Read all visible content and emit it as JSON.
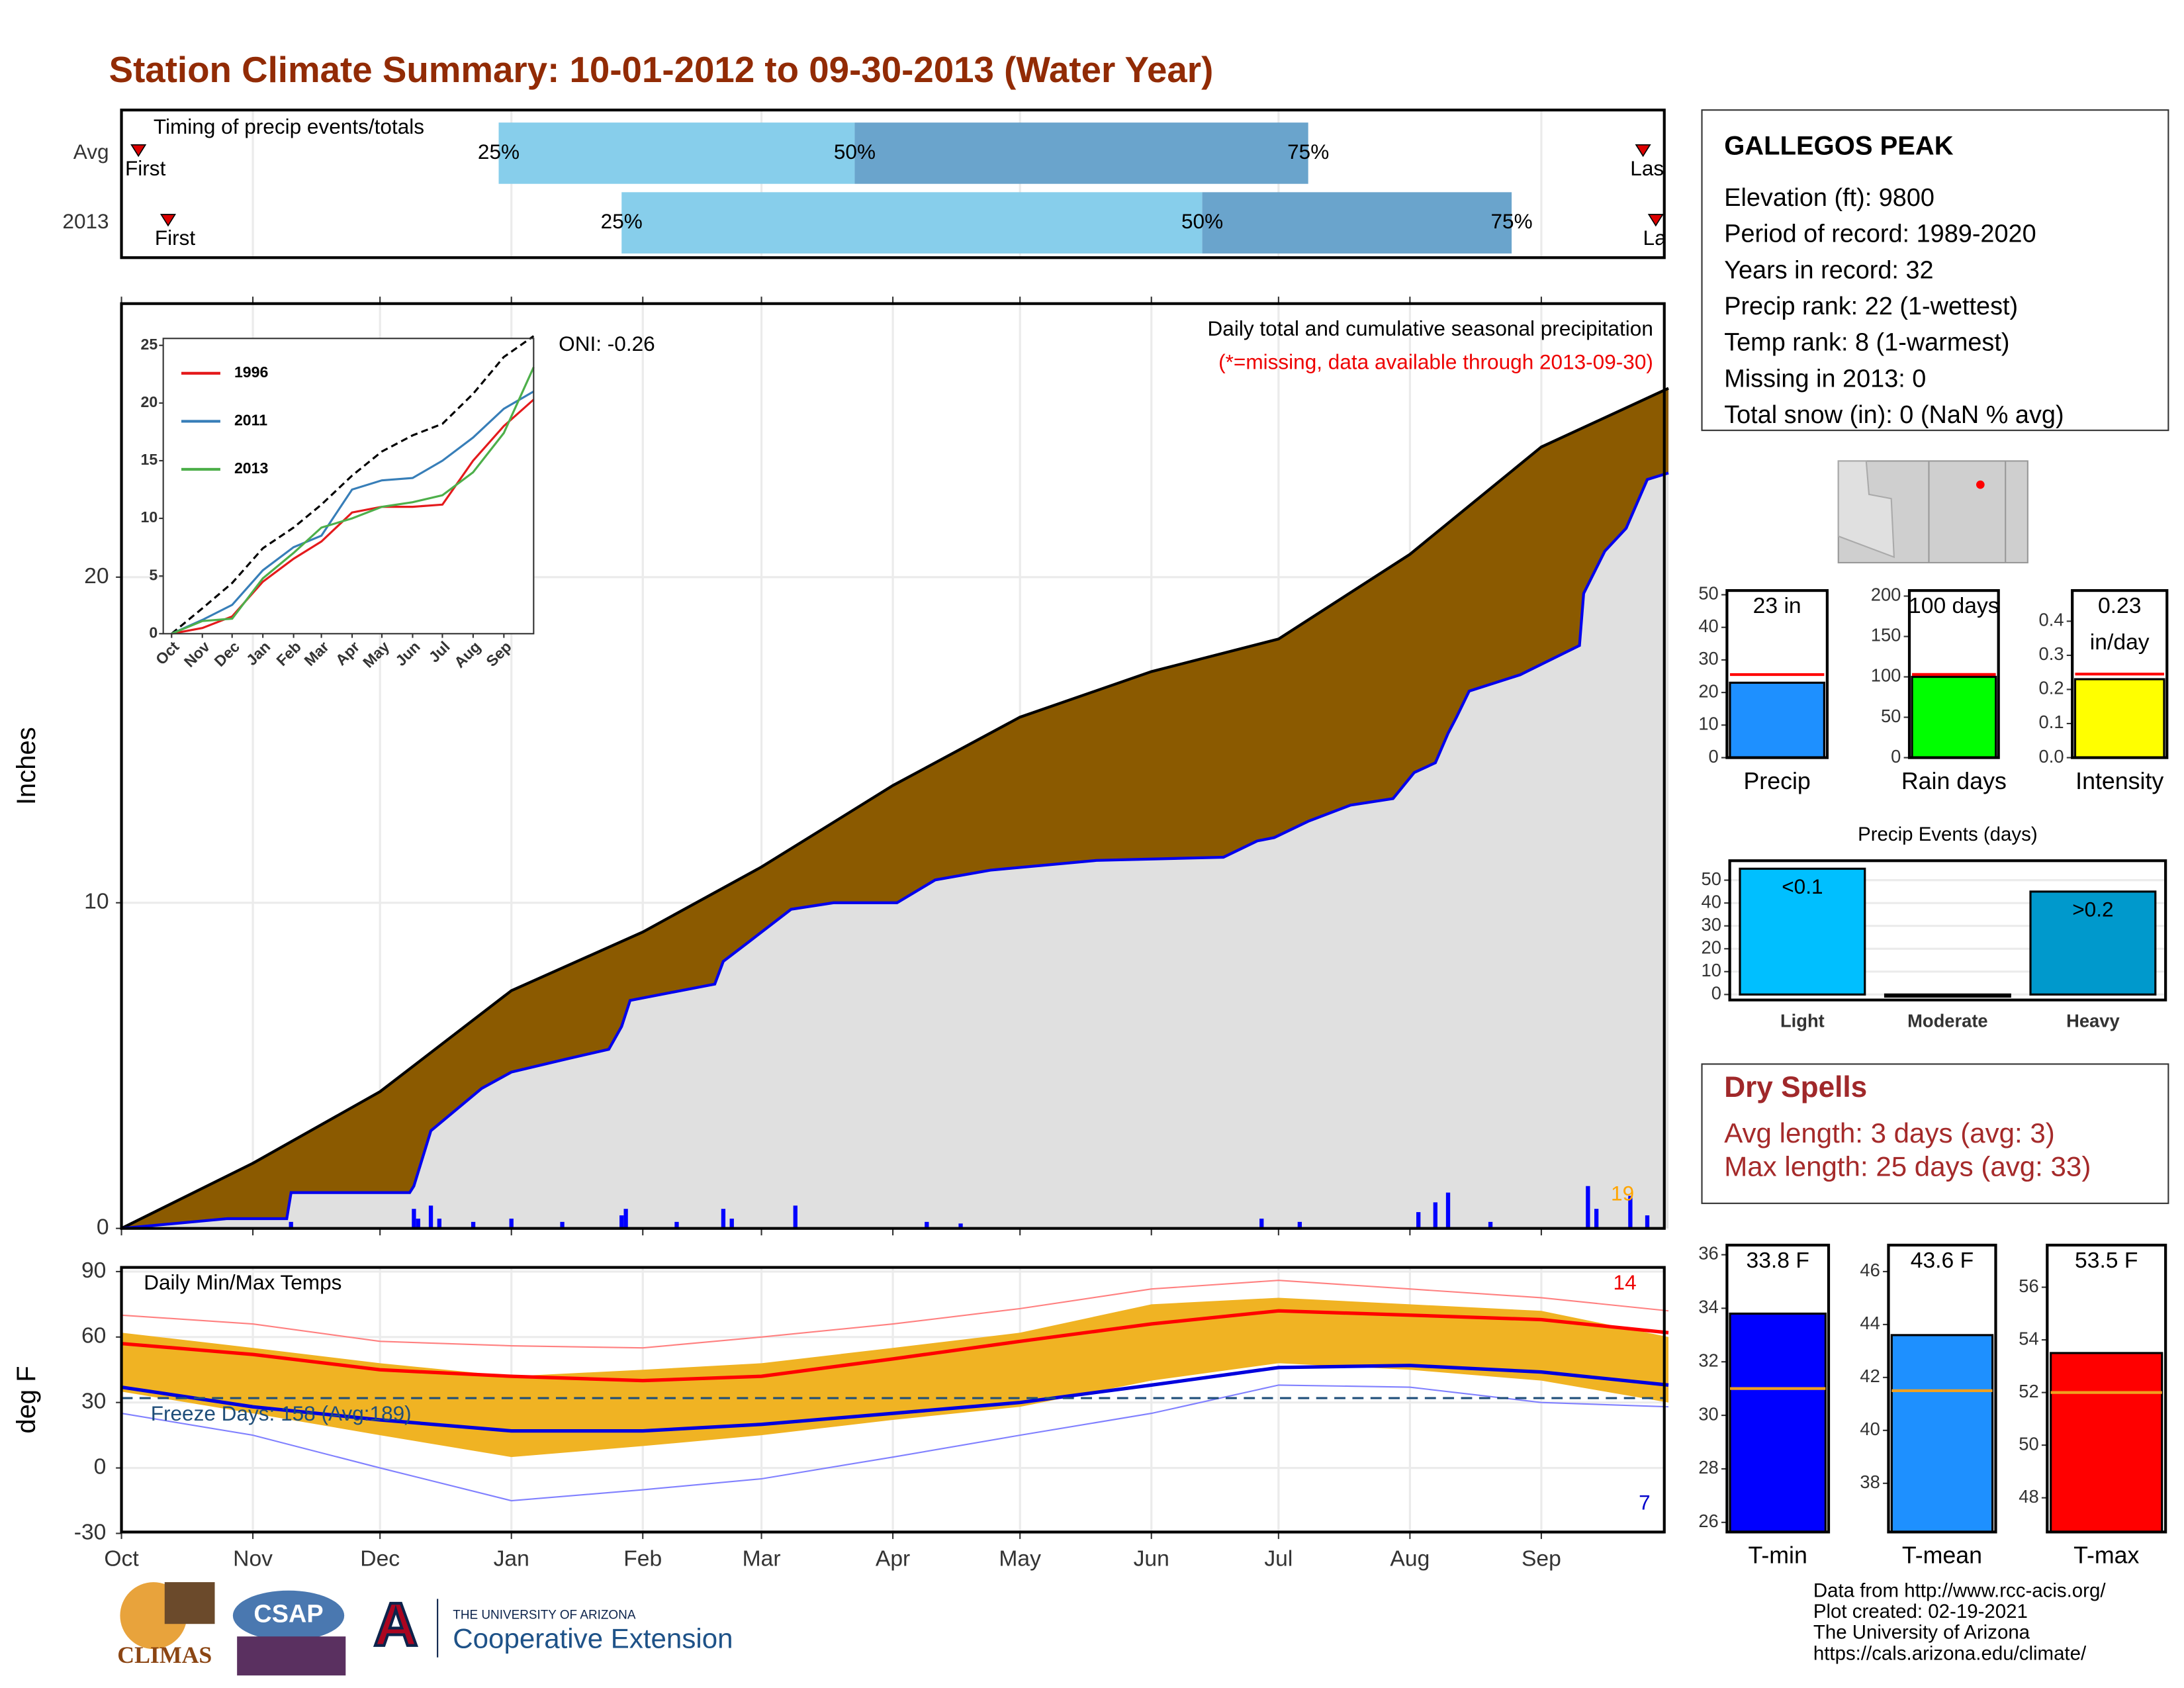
{
  "title": "Station Climate Summary: 10-01-2012 to 09-30-2013 (Water Year)",
  "station": {
    "name": "GALLEGOS PEAK",
    "lines": [
      "Elevation (ft): 9800",
      "Period of record: 1989-2020",
      "Years in record: 32",
      "Precip rank: 22 (1-wettest)",
      "Temp rank: 8 (1-warmest)",
      "Missing in 2013: 0",
      "Total snow (in): 0 (NaN % avg)"
    ]
  },
  "dry_spells": {
    "title": "Dry Spells",
    "lines": [
      "Avg length: 3 days (avg: 3)",
      "Max length: 25 days (avg: 33)"
    ]
  },
  "footer": [
    "Data from http://www.rcc-acis.org/",
    "Plot created: 02-19-2021",
    "The University of Arizona",
    "https://cals.arizona.edu/climate/"
  ],
  "logos": [
    "CLIMAS",
    "CSAP",
    "THE UNIVERSITY OF ARIZONA",
    "Cooperative Extension"
  ],
  "chart_data": [
    {
      "type": "timeline",
      "title": "Timing of precip events/totals",
      "xlim": [
        0,
        365
      ],
      "xticks": [
        31,
        92,
        151,
        212,
        273,
        335
      ],
      "grid": true,
      "marker_labels": {
        "first": "First",
        "p25": "25%",
        "p50": "50%",
        "p75": "75%",
        "last": "Last"
      },
      "rows": [
        {
          "name": "Avg",
          "first": 4,
          "p25": 89,
          "p50": 173,
          "p75": 280,
          "last": 359
        },
        {
          "name": "2013",
          "first": 11,
          "p25": 118,
          "p50": 255,
          "p75": 328,
          "last": 362
        }
      ],
      "colors": {
        "early": "#87ceeb",
        "late": "#6aa4cc",
        "marker": "#dd0000"
      }
    },
    {
      "type": "area",
      "ylabel": "Inches",
      "title": "Daily total and cumulative seasonal precipitation",
      "subtitle": "(*=missing, data available through 2013-09-30)",
      "annotation": "ONI: -0.26",
      "record_label": 19,
      "xlim": [
        0,
        365
      ],
      "xticks": [
        0,
        31,
        61,
        92,
        123,
        151,
        182,
        212,
        243,
        273,
        304,
        335
      ],
      "ylim": [
        0,
        28.4
      ],
      "yticks": [
        0,
        10,
        20
      ],
      "grid": true,
      "average": {
        "x": [
          0,
          31,
          61,
          92,
          123,
          151,
          182,
          212,
          243,
          273,
          304,
          335,
          365
        ],
        "values": [
          0,
          2.0,
          4.2,
          7.3,
          9.1,
          11.1,
          13.6,
          15.7,
          17.1,
          18.1,
          20.7,
          24.0,
          25.8
        ],
        "color": "#000000",
        "fill": "#8b5a00"
      },
      "observed": {
        "x": [
          0,
          25,
          39,
          40,
          68,
          69,
          73,
          85,
          92,
          105,
          115,
          118,
          120,
          140,
          142,
          148,
          158,
          168,
          183,
          192,
          205,
          230,
          260,
          268,
          272,
          280,
          290,
          300,
          305,
          310,
          313,
          315,
          318,
          330,
          344,
          345,
          350,
          355,
          360,
          365
        ],
        "values": [
          0,
          0.3,
          0.3,
          1.1,
          1.1,
          1.3,
          3.0,
          4.3,
          4.8,
          5.2,
          5.5,
          6.2,
          7.0,
          7.5,
          8.2,
          8.8,
          9.8,
          10.0,
          10.0,
          10.7,
          11.0,
          11.3,
          11.4,
          11.9,
          12.0,
          12.5,
          13.0,
          13.2,
          14.0,
          14.3,
          15.2,
          15.7,
          16.5,
          17.0,
          17.9,
          19.5,
          20.8,
          21.5,
          23.0,
          23.2
        ],
        "color": "#0000ee",
        "fill": "#e0e0e0"
      },
      "daily": {
        "x": [
          40,
          69,
          70,
          73,
          75,
          83,
          92,
          104,
          118,
          119,
          131,
          142,
          144,
          159,
          190,
          198,
          269,
          278,
          306,
          310,
          313,
          323,
          346,
          348,
          356,
          360
        ],
        "values": [
          0.2,
          0.6,
          0.3,
          0.7,
          0.3,
          0.2,
          0.3,
          0.2,
          0.4,
          0.6,
          0.2,
          0.6,
          0.3,
          0.7,
          0.2,
          0.15,
          0.3,
          0.2,
          0.5,
          0.8,
          1.1,
          0.2,
          1.3,
          0.6,
          1.0,
          0.4
        ],
        "color": "#0000ff"
      }
    },
    {
      "type": "line",
      "xlim": [
        0,
        365
      ],
      "xticks": [
        {
          "value": 0,
          "label": "Oct"
        },
        {
          "value": 31,
          "label": "Nov"
        },
        {
          "value": 61,
          "label": "Dec"
        },
        {
          "value": 92,
          "label": "Jan"
        },
        {
          "value": 123,
          "label": "Feb"
        },
        {
          "value": 151,
          "label": "Mar"
        },
        {
          "value": 182,
          "label": "Apr"
        },
        {
          "value": 212,
          "label": "May"
        },
        {
          "value": 243,
          "label": "Jun"
        },
        {
          "value": 273,
          "label": "Jul"
        },
        {
          "value": 304,
          "label": "Aug"
        },
        {
          "value": 335,
          "label": "Sep"
        }
      ],
      "ylim": [
        0,
        25.6
      ],
      "yticks": [
        0,
        5,
        10,
        15,
        20,
        25
      ],
      "x": [
        0,
        31,
        61,
        92,
        123,
        151,
        182,
        212,
        243,
        273,
        304,
        335,
        365
      ],
      "average": {
        "values": [
          0,
          2.2,
          4.4,
          7.4,
          9.2,
          11.2,
          13.7,
          15.8,
          17.2,
          18.2,
          20.8,
          24.0,
          25.8
        ],
        "color": "#000000"
      },
      "series": [
        {
          "name": "1996",
          "color": "#e41a1c",
          "values": [
            0,
            0.5,
            1.5,
            4.5,
            6.5,
            8.0,
            10.5,
            11.0,
            11.0,
            11.2,
            15.0,
            18.0,
            20.3
          ]
        },
        {
          "name": "2011",
          "color": "#377eb8",
          "values": [
            0,
            1.2,
            2.5,
            5.5,
            7.5,
            8.5,
            12.5,
            13.3,
            13.5,
            15.0,
            17.0,
            19.5,
            21.0
          ]
        },
        {
          "name": "2013",
          "color": "#4daf4a",
          "values": [
            0,
            1.1,
            1.3,
            4.8,
            7.0,
            9.2,
            10.0,
            11.0,
            11.4,
            12.0,
            14.0,
            17.4,
            23.1
          ]
        }
      ]
    },
    {
      "type": "band",
      "title": "Daily Min/Max Temps",
      "ylabel": "deg F",
      "annotation": "Freeze Days: 158 (Avg:189)",
      "record_counts": {
        "high": 14,
        "low": 7
      },
      "xlim": [
        0,
        365
      ],
      "xticks": [
        {
          "value": 0,
          "label": "Oct"
        },
        {
          "value": 31,
          "label": "Nov"
        },
        {
          "value": 61,
          "label": "Dec"
        },
        {
          "value": 92,
          "label": "Jan"
        },
        {
          "value": 123,
          "label": "Feb"
        },
        {
          "value": 151,
          "label": "Mar"
        },
        {
          "value": 182,
          "label": "Apr"
        },
        {
          "value": 212,
          "label": "May"
        },
        {
          "value": 243,
          "label": "Jun"
        },
        {
          "value": 273,
          "label": "Jul"
        },
        {
          "value": 304,
          "label": "Aug"
        },
        {
          "value": 335,
          "label": "Sep"
        }
      ],
      "ylim": [
        -30,
        90
      ],
      "yticks": [
        -30,
        0,
        30,
        60,
        90
      ],
      "grid": true,
      "freeze": 32,
      "x": [
        0,
        31,
        61,
        92,
        123,
        151,
        182,
        212,
        243,
        273,
        304,
        335,
        365
      ],
      "observed_max": [
        62,
        55,
        48,
        42,
        45,
        48,
        55,
        62,
        75,
        78,
        75,
        72,
        60
      ],
      "observed_min": [
        35,
        25,
        15,
        5,
        10,
        15,
        22,
        28,
        40,
        48,
        45,
        40,
        30
      ],
      "avg_max": [
        57,
        52,
        45,
        42,
        40,
        42,
        50,
        58,
        66,
        72,
        70,
        68,
        62
      ],
      "avg_min": [
        37,
        28,
        22,
        17,
        17,
        20,
        25,
        30,
        38,
        46,
        47,
        44,
        38
      ],
      "record_max": [
        70,
        66,
        58,
        56,
        55,
        60,
        66,
        73,
        82,
        86,
        82,
        78,
        72
      ],
      "record_min": [
        25,
        15,
        0,
        -15,
        -10,
        -5,
        5,
        15,
        25,
        38,
        37,
        30,
        28
      ],
      "colors": {
        "band": "#f0b323",
        "max": "#ff0000",
        "min": "#0000dd",
        "record_max": "#ff8080",
        "record_min": "#8080ff",
        "freeze": "#1f4e79"
      }
    },
    {
      "type": "bar",
      "categories": [
        "Precip"
      ],
      "values": [
        23
      ],
      "value_labels": [
        "23 in"
      ],
      "avg": [
        25.5
      ],
      "colors": [
        "#1e90ff"
      ],
      "avg_color": "#ff0000",
      "ylim": [
        0,
        51.3
      ],
      "yticks": [
        0,
        10,
        20,
        30,
        40,
        50
      ]
    },
    {
      "type": "bar",
      "categories": [
        "Rain days"
      ],
      "values": [
        100
      ],
      "value_labels": [
        "100 days"
      ],
      "avg": [
        103
      ],
      "colors": [
        "#00ff00"
      ],
      "avg_color": "#ff0000",
      "ylim": [
        0,
        206.9
      ],
      "yticks": [
        0,
        50,
        100,
        150,
        200
      ]
    },
    {
      "type": "bar",
      "categories": [
        "Intensity"
      ],
      "values": [
        0.23
      ],
      "value_labels": [
        "0.23"
      ],
      "unit_label": "in/day",
      "avg": [
        0.245
      ],
      "colors": [
        "#ffff00"
      ],
      "avg_color": "#ff0000",
      "ylim": [
        0,
        0.49
      ],
      "yticks": [
        {
          "value": 0,
          "label": "0.0"
        },
        0.1,
        0.2,
        0.3,
        0.4
      ]
    },
    {
      "type": "bar",
      "title": "Precip Events (days)",
      "categories": [
        "Light",
        "Moderate",
        "Heavy"
      ],
      "values": [
        55,
        0,
        45
      ],
      "bin_labels": [
        "<0.1",
        null,
        ">0.2"
      ],
      "colors": [
        "#00bfff",
        "#00bfff",
        "#0099cc"
      ],
      "ylim": [
        -2.4,
        58.5
      ],
      "yticks": [
        0,
        10,
        20,
        30,
        40,
        50
      ],
      "grid": true
    },
    {
      "type": "bar",
      "categories": [
        "T-min"
      ],
      "values": [
        33.8
      ],
      "value_labels": [
        "33.8 F"
      ],
      "avg": [
        31
      ],
      "colors": [
        "#0000ff"
      ],
      "avg_color": "#f0a020",
      "ylim": [
        25.64,
        36.36
      ],
      "yticks": [
        26,
        28,
        30,
        32,
        34,
        36
      ]
    },
    {
      "type": "bar",
      "categories": [
        "T-mean"
      ],
      "values": [
        43.6
      ],
      "value_labels": [
        "43.6 F"
      ],
      "avg": [
        41.5
      ],
      "colors": [
        "#1e90ff"
      ],
      "avg_color": "#f0a020",
      "ylim": [
        36.16,
        47.0
      ],
      "yticks": [
        38,
        40,
        42,
        44,
        46
      ]
    },
    {
      "type": "bar",
      "categories": [
        "T-max"
      ],
      "values": [
        53.5
      ],
      "value_labels": [
        "53.5 F"
      ],
      "avg": [
        52
      ],
      "colors": [
        "#ff0000"
      ],
      "avg_color": "#f0a020",
      "ylim": [
        46.7,
        57.6
      ],
      "yticks": [
        48,
        50,
        52,
        54,
        56
      ]
    }
  ]
}
